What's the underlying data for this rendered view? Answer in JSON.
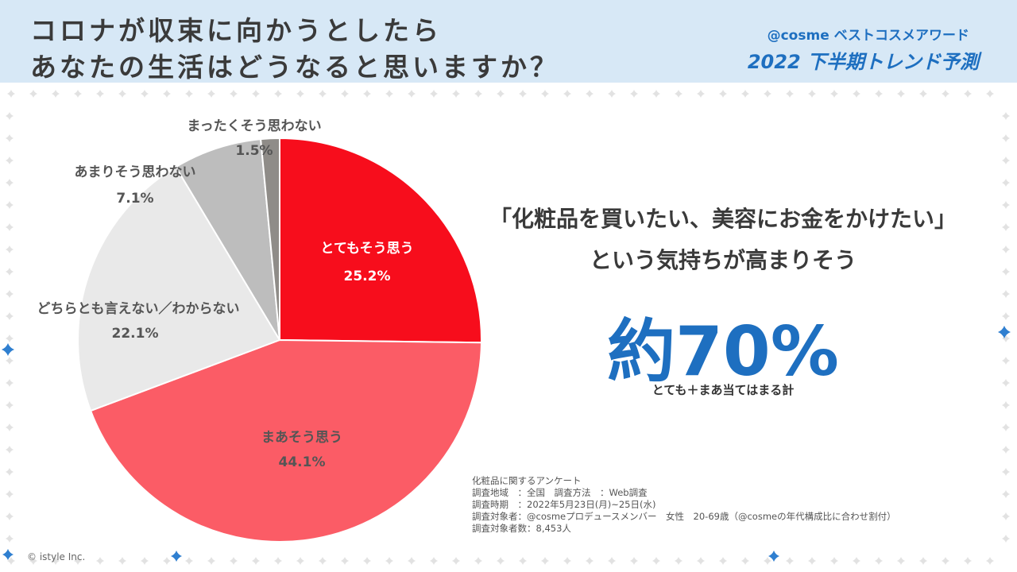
{
  "header": {
    "title_line1": "コロナが収束に向かうとしたら",
    "title_line2": "あなたの生活はどうなると思いますか？",
    "brand": "@cosme ベストコスメアワード",
    "brand_sub": "2022 下半期トレンド予測"
  },
  "chart_data": {
    "type": "pie",
    "slices": [
      {
        "label": "とてもそう思う",
        "value": 25.2,
        "value_label": "25.2%",
        "color": "#f70d1c"
      },
      {
        "label": "まあそう思う",
        "value": 44.1,
        "value_label": "44.1%",
        "color": "#fb5c66"
      },
      {
        "label": "どちらとも言えない／わからない",
        "value": 22.1,
        "value_label": "22.1%",
        "color": "#e9e9e9"
      },
      {
        "label": "あまりそう思わない",
        "value": 7.1,
        "value_label": "7.1%",
        "color": "#bdbdbd"
      },
      {
        "label": "まったくそう思わない",
        "value": 1.5,
        "value_label": "1.5%",
        "color": "#8f8c88"
      }
    ],
    "start": "12 o'clock",
    "direction": "clockwise"
  },
  "headline": {
    "line1": "「化粧品を買いたい、美容にお金をかけたい」",
    "line2": "という気持ちが高まりそう",
    "big_number": "約70%",
    "note": "とても＋まあ当てはまる計"
  },
  "survey": {
    "lines": [
      "化粧品に関するアンケート",
      "調査地域　：全国　調査方法　：Web調査",
      "調査時期　：2022年5月23日(月)~25日(水)",
      "調査対象者：@cosmeプロデュースメンバー　女性　20-69歳（@cosmeの年代構成比に合わせ割付）",
      "調査対象者数：8,453人"
    ]
  },
  "copyright": "© istyle Inc.",
  "colors": {
    "accent_blue": "#1e6fc0",
    "header_bg": "#d7e8f6",
    "sparkle": "#2f7fd0"
  }
}
